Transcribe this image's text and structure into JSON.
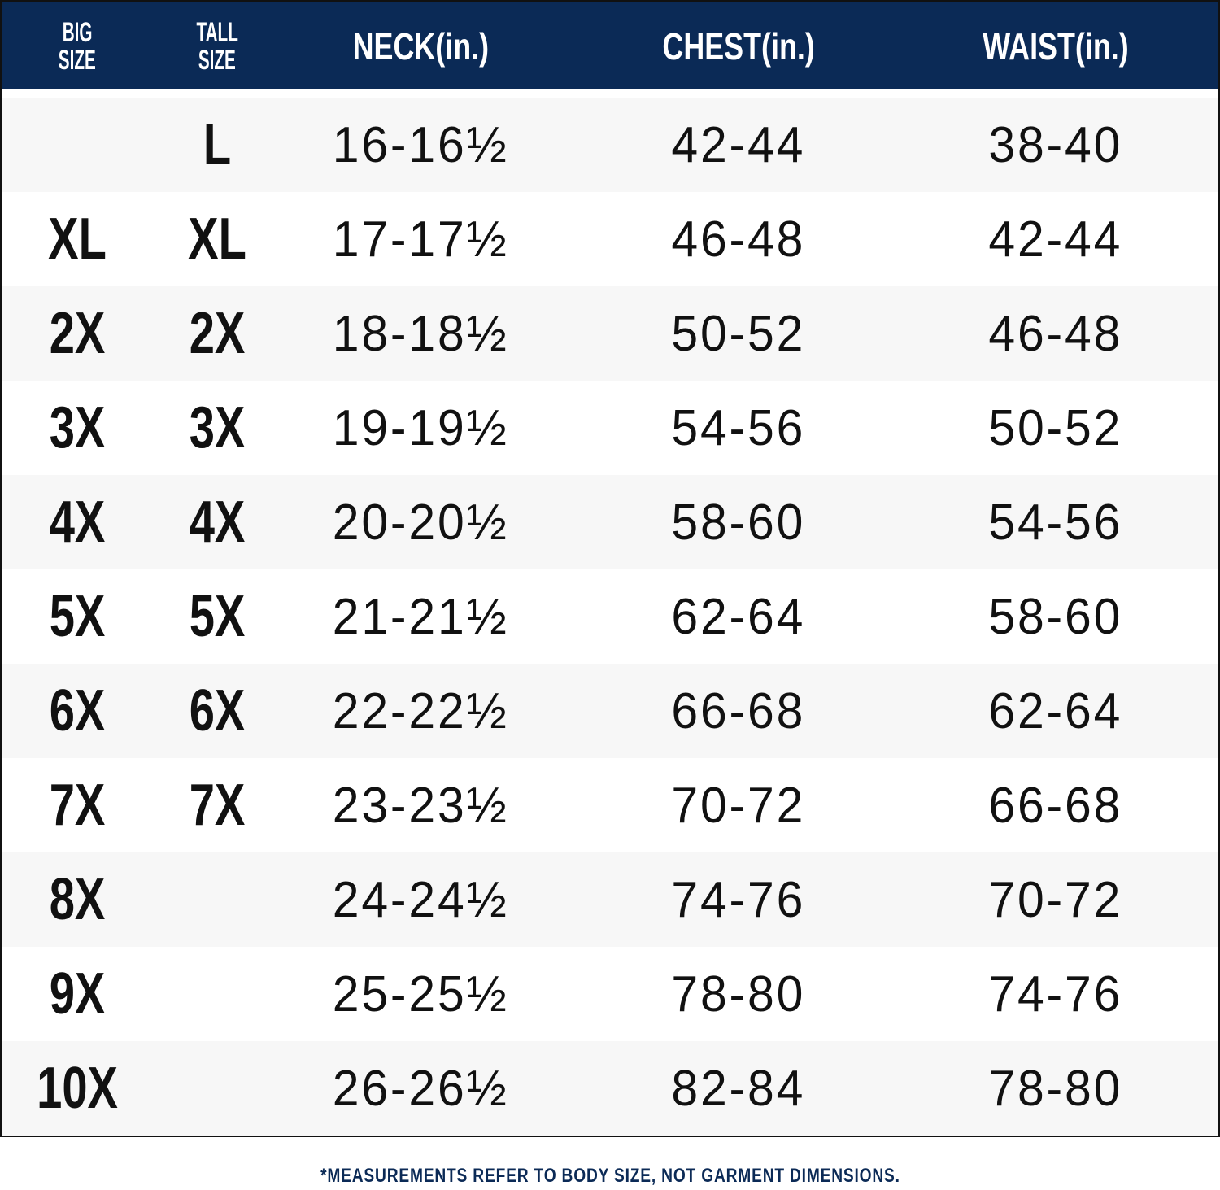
{
  "colors": {
    "header_bg": "#0b2a56",
    "row_alt": "#f7f7f7",
    "footnote": "#0b2a56"
  },
  "header": {
    "big_size": [
      "BIG",
      "SIZE"
    ],
    "tall_size": [
      "TALL",
      "SIZE"
    ],
    "neck": "NECK(in.)",
    "chest": "CHEST(in.)",
    "waist": "WAIST(in.)"
  },
  "rows": [
    {
      "big": "",
      "tall": "L",
      "neck": "16-16½",
      "chest": "42-44",
      "waist": "38-40"
    },
    {
      "big": "XL",
      "tall": "XL",
      "neck": "17-17½",
      "chest": "46-48",
      "waist": "42-44"
    },
    {
      "big": "2X",
      "tall": "2X",
      "neck": "18-18½",
      "chest": "50-52",
      "waist": "46-48"
    },
    {
      "big": "3X",
      "tall": "3X",
      "neck": "19-19½",
      "chest": "54-56",
      "waist": "50-52"
    },
    {
      "big": "4X",
      "tall": "4X",
      "neck": "20-20½",
      "chest": "58-60",
      "waist": "54-56"
    },
    {
      "big": "5X",
      "tall": "5X",
      "neck": "21-21½",
      "chest": "62-64",
      "waist": "58-60"
    },
    {
      "big": "6X",
      "tall": "6X",
      "neck": "22-22½",
      "chest": "66-68",
      "waist": "62-64"
    },
    {
      "big": "7X",
      "tall": "7X",
      "neck": "23-23½",
      "chest": "70-72",
      "waist": "66-68"
    },
    {
      "big": "8X",
      "tall": "",
      "neck": "24-24½",
      "chest": "74-76",
      "waist": "70-72"
    },
    {
      "big": "9X",
      "tall": "",
      "neck": "25-25½",
      "chest": "78-80",
      "waist": "74-76"
    },
    {
      "big": "10X",
      "tall": "",
      "neck": "26-26½",
      "chest": "82-84",
      "waist": "78-80"
    }
  ],
  "footnote": "*MEASUREMENTS REFER TO BODY SIZE, NOT GARMENT DIMENSIONS."
}
